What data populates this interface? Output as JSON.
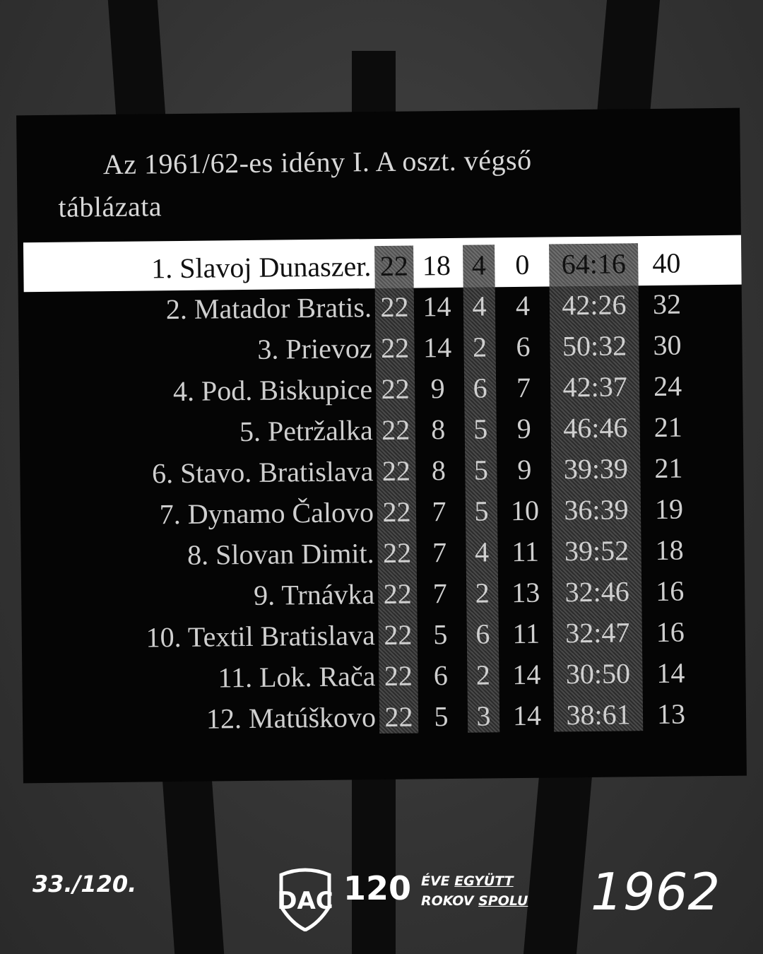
{
  "title_line1": "Az 1961/62-es idény I. A oszt. végső",
  "title_line2": "táblázata",
  "rows": [
    {
      "name": "1. Slavoj Dunaszer.",
      "p": "22",
      "w": "18",
      "d": "4",
      "l": "0",
      "g": "64:16",
      "pts": "40"
    },
    {
      "name": "2. Matador Bratis.",
      "p": "22",
      "w": "14",
      "d": "4",
      "l": "4",
      "g": "42:26",
      "pts": "32"
    },
    {
      "name": "3. Prievoz",
      "p": "22",
      "w": "14",
      "d": "2",
      "l": "6",
      "g": "50:32",
      "pts": "30"
    },
    {
      "name": "4. Pod. Biskupice",
      "p": "22",
      "w": "9",
      "d": "6",
      "l": "7",
      "g": "42:37",
      "pts": "24"
    },
    {
      "name": "5. Petržalka",
      "p": "22",
      "w": "8",
      "d": "5",
      "l": "9",
      "g": "46:46",
      "pts": "21"
    },
    {
      "name": "6. Stavo. Bratislava",
      "p": "22",
      "w": "8",
      "d": "5",
      "l": "9",
      "g": "39:39",
      "pts": "21"
    },
    {
      "name": "7. Dynamo Čalovo",
      "p": "22",
      "w": "7",
      "d": "5",
      "l": "10",
      "g": "36:39",
      "pts": "19"
    },
    {
      "name": "8. Slovan Dimit.",
      "p": "22",
      "w": "7",
      "d": "4",
      "l": "11",
      "g": "39:52",
      "pts": "18"
    },
    {
      "name": "9. Trnávka",
      "p": "22",
      "w": "7",
      "d": "2",
      "l": "13",
      "g": "32:46",
      "pts": "16"
    },
    {
      "name": "10. Textil Bratislava",
      "p": "22",
      "w": "5",
      "d": "6",
      "l": "11",
      "g": "32:47",
      "pts": "16"
    },
    {
      "name": "11. Lok. Rača",
      "p": "22",
      "w": "6",
      "d": "2",
      "l": "14",
      "g": "30:50",
      "pts": "14"
    },
    {
      "name": "12. Matúškovo",
      "p": "22",
      "w": "5",
      "d": "3",
      "l": "14",
      "g": "38:61",
      "pts": "13"
    }
  ],
  "footer": {
    "counter": "33./120.",
    "logo_text": "DAC",
    "anniversary": "120",
    "slogan_hu_1": "ÉVE",
    "slogan_hu_2": "EGYÜTT",
    "slogan_sk_1": "ROKOV",
    "slogan_sk_2": "SPOLU",
    "year": "1962"
  }
}
